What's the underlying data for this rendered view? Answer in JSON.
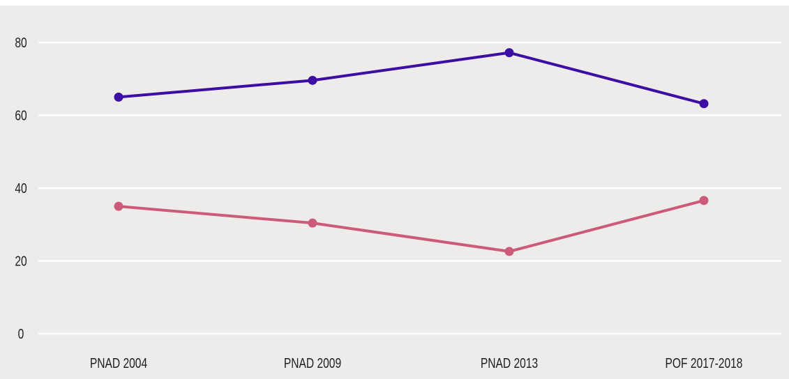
{
  "chart_data": {
    "type": "line",
    "categories": [
      "PNAD 2004",
      "PNAD 2009",
      "PNAD 2013",
      "POF 2017-2018"
    ],
    "series": [
      {
        "values": [
          65.0,
          69.6,
          77.2,
          63.2
        ],
        "color": "#3d0ea3"
      },
      {
        "values": [
          35.0,
          30.4,
          22.6,
          36.6
        ],
        "color": "#cc5b7a"
      }
    ],
    "ylim": [
      0,
      80
    ],
    "yticks": [
      0,
      20,
      40,
      60,
      80
    ],
    "grid": true,
    "background_color": "#eeecea"
  }
}
